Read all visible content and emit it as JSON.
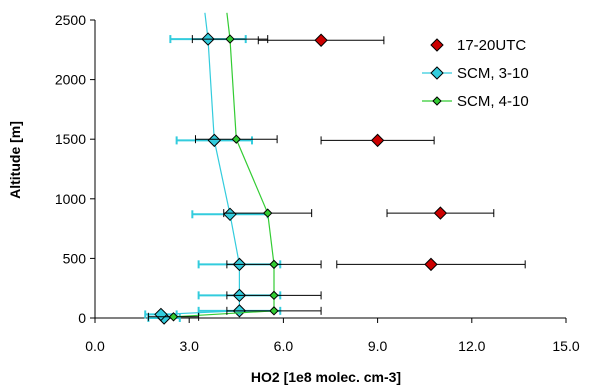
{
  "chart_data": {
    "type": "scatter",
    "title": "",
    "xlabel": "HO2 [1e8 molec. cm-3]",
    "ylabel": "Altitude [m]",
    "xlim": [
      0,
      15
    ],
    "ylim": [
      0,
      2500
    ],
    "xticks": [
      "0.0",
      "3.0",
      "6.0",
      "9.0",
      "12.0",
      "15.0"
    ],
    "yticks": [
      "0",
      "500",
      "1000",
      "1500",
      "2000",
      "2500"
    ],
    "grid": false,
    "legend_position": "top-right",
    "series": [
      {
        "name": "17-20UTC",
        "marker": "diamond",
        "color": "#cc0000",
        "errorbar_color": "#000000",
        "line": false,
        "points": [
          {
            "x": 7.2,
            "y": 2330,
            "xerr": 2.0
          },
          {
            "x": 9.0,
            "y": 1490,
            "xerr": 1.8
          },
          {
            "x": 11.0,
            "y": 880,
            "xerr": 1.7
          },
          {
            "x": 10.7,
            "y": 450,
            "xerr": 3.0
          }
        ]
      },
      {
        "name": "SCM, 3-10",
        "marker": "diamond",
        "color": "#33ccdd",
        "errorbar_color": "#33ccdd",
        "line": true,
        "points": [
          {
            "x": 2.2,
            "y": 0,
            "xerr": 0.5
          },
          {
            "x": 2.1,
            "y": 30,
            "xerr": 0.5
          },
          {
            "x": 4.6,
            "y": 60,
            "xerr": 1.3
          },
          {
            "x": 4.6,
            "y": 190,
            "xerr": 1.3
          },
          {
            "x": 4.6,
            "y": 450,
            "xerr": 1.3
          },
          {
            "x": 4.3,
            "y": 870,
            "xerr": 1.2
          },
          {
            "x": 3.8,
            "y": 1490,
            "xerr": 1.2
          },
          {
            "x": 3.6,
            "y": 2340,
            "xerr": 1.2
          }
        ],
        "line_points": [
          {
            "x": 2.2,
            "y": 0
          },
          {
            "x": 2.1,
            "y": 30
          },
          {
            "x": 4.6,
            "y": 60
          },
          {
            "x": 4.6,
            "y": 190
          },
          {
            "x": 4.6,
            "y": 450
          },
          {
            "x": 4.3,
            "y": 870
          },
          {
            "x": 3.8,
            "y": 1490
          },
          {
            "x": 3.6,
            "y": 2340
          },
          {
            "x": 3.5,
            "y": 2560
          }
        ]
      },
      {
        "name": "SCM, 4-10",
        "marker": "diamond",
        "color": "#33cc33",
        "errorbar_color": "#000000",
        "line": true,
        "points": [
          {
            "x": 2.5,
            "y": 10,
            "xerr": 0.8
          },
          {
            "x": 5.7,
            "y": 60,
            "xerr": 1.5
          },
          {
            "x": 5.7,
            "y": 190,
            "xerr": 1.5
          },
          {
            "x": 5.7,
            "y": 450,
            "xerr": 1.5
          },
          {
            "x": 5.5,
            "y": 880,
            "xerr": 1.4
          },
          {
            "x": 4.5,
            "y": 1500,
            "xerr": 1.3
          },
          {
            "x": 4.3,
            "y": 2340,
            "xerr": 1.2
          }
        ],
        "line_points": [
          {
            "x": 2.5,
            "y": 10
          },
          {
            "x": 5.7,
            "y": 60
          },
          {
            "x": 5.7,
            "y": 190
          },
          {
            "x": 5.7,
            "y": 450
          },
          {
            "x": 5.5,
            "y": 880
          },
          {
            "x": 4.5,
            "y": 1500
          },
          {
            "x": 4.3,
            "y": 2340
          },
          {
            "x": 4.2,
            "y": 2560
          }
        ]
      }
    ]
  }
}
